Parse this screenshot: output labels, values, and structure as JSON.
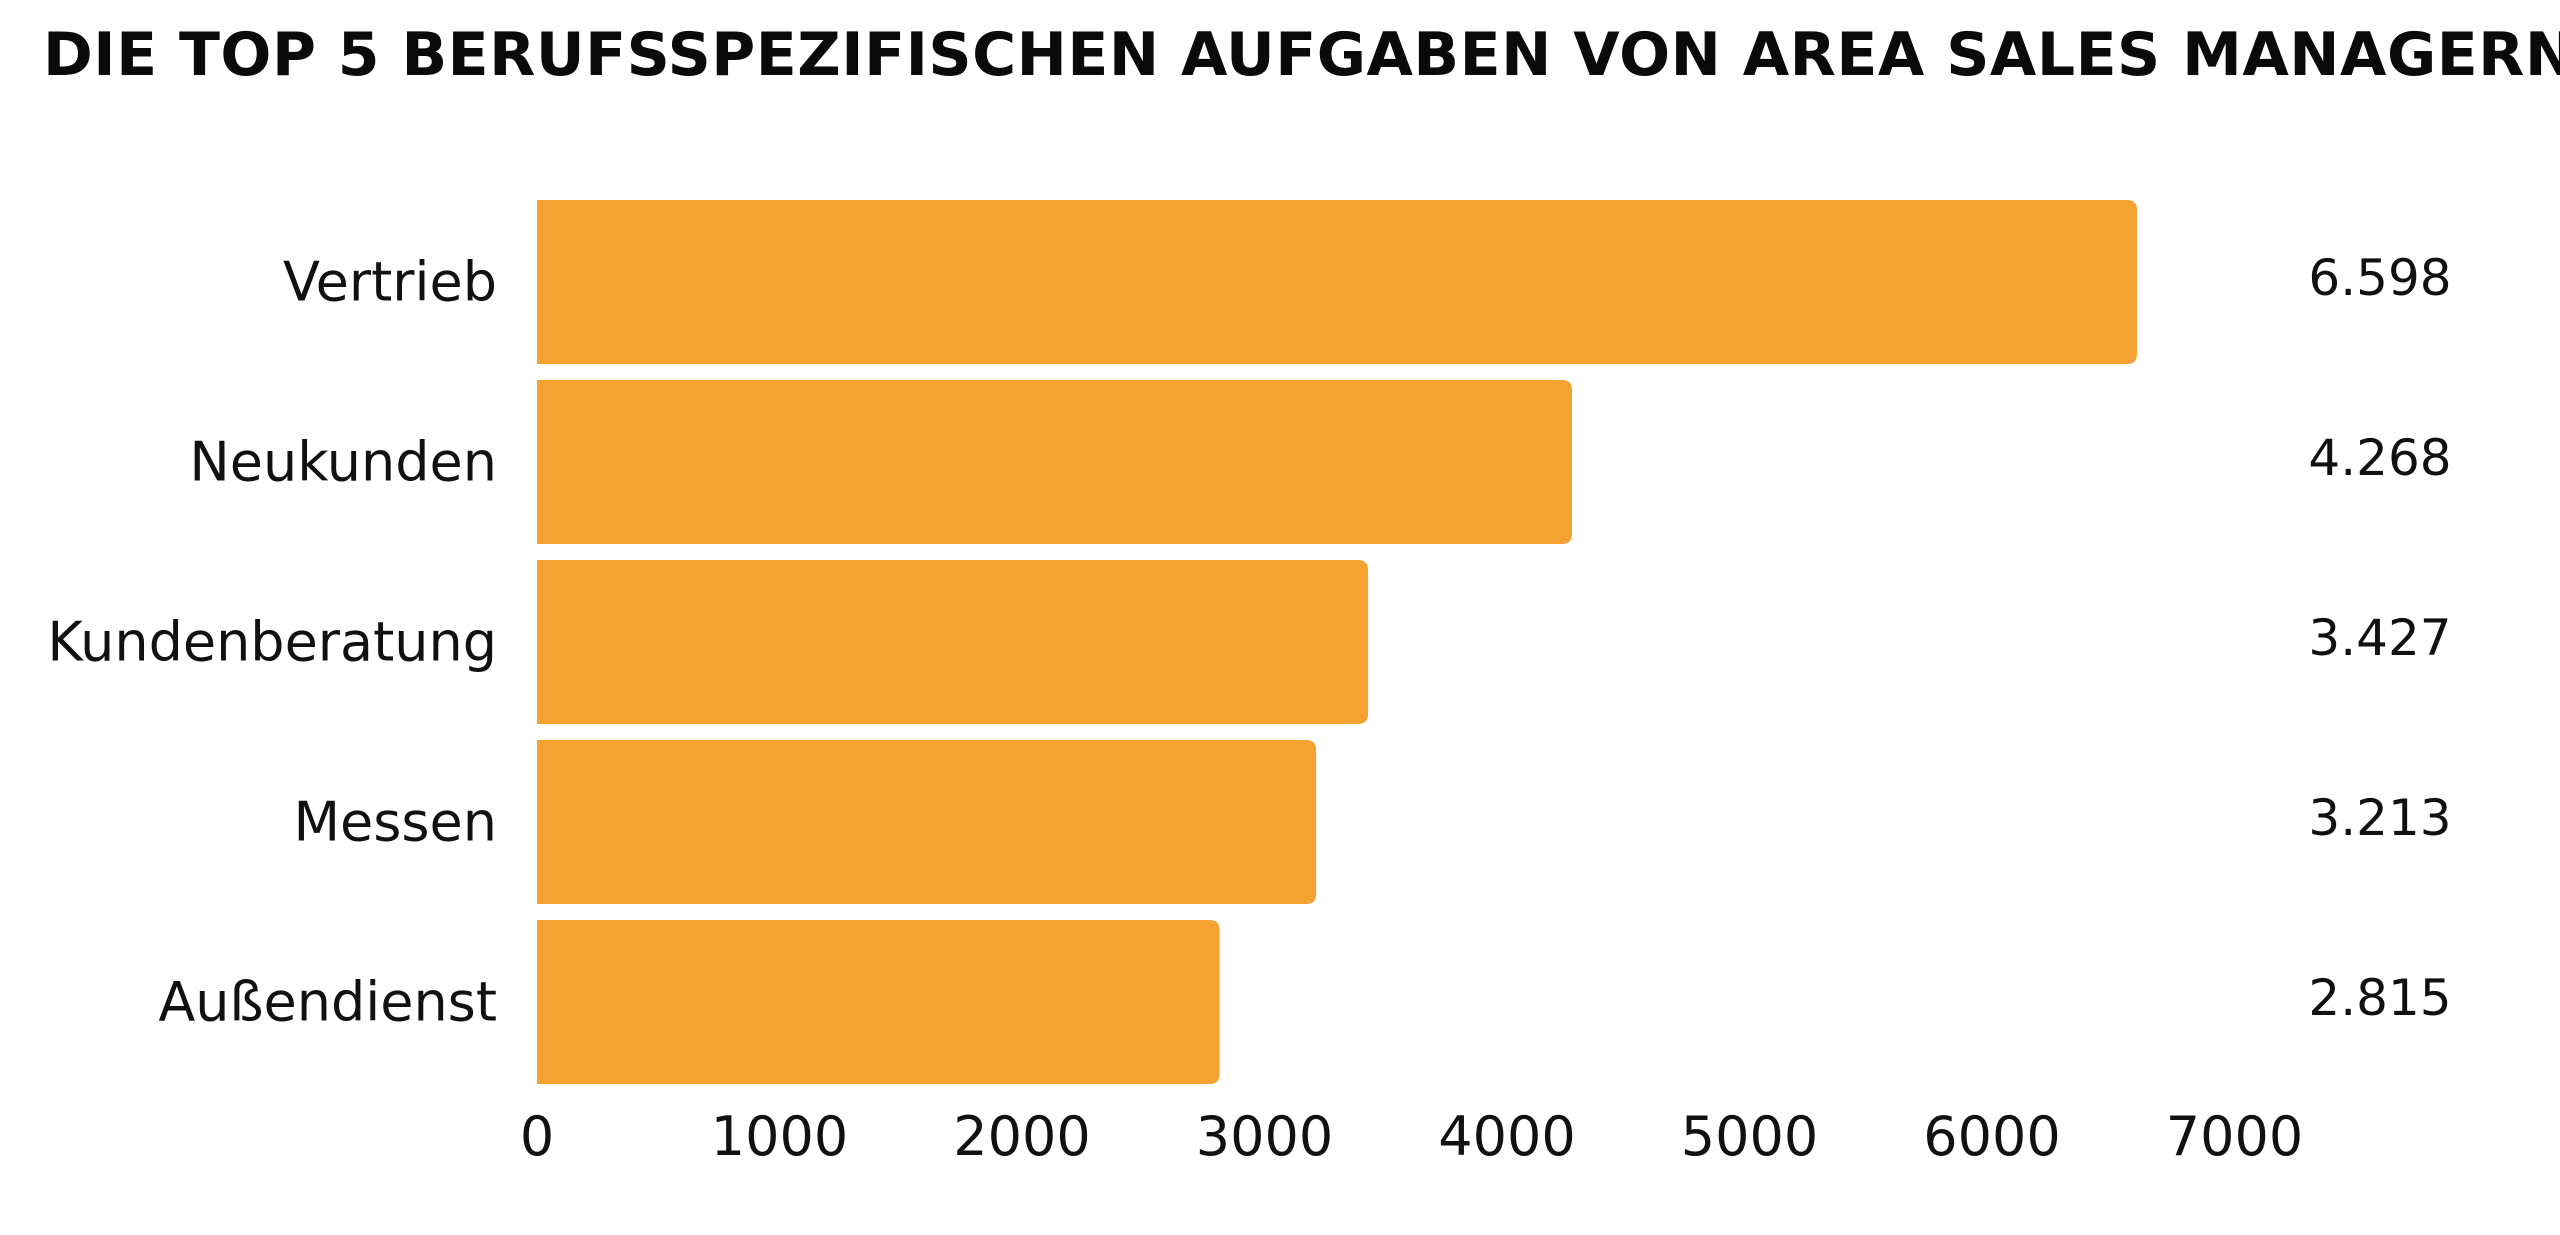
{
  "chart_data": {
    "type": "bar",
    "orientation": "horizontal",
    "title": "DIE TOP 5 BERUFSSPEZIFISCHEN AUFGABEN VON AREA SALES MANAGERN",
    "categories": [
      "Vertrieb",
      "Neukunden",
      "Kundenberatung",
      "Messen",
      "Außendienst"
    ],
    "values": [
      6598,
      4268,
      3427,
      3213,
      2815
    ],
    "value_labels": [
      "6.598",
      "4.268",
      "3.427",
      "3.213",
      "2.815"
    ],
    "xlim": [
      0,
      7000
    ],
    "xticks": [
      0,
      1000,
      2000,
      3000,
      4000,
      5000,
      6000,
      7000
    ],
    "xtick_labels": [
      "0",
      "1000",
      "2000",
      "3000",
      "4000",
      "5000",
      "6000",
      "7000"
    ],
    "xlabel": "",
    "ylabel": "",
    "grid": false,
    "legend": "none",
    "bar_color": "#F4A232"
  }
}
